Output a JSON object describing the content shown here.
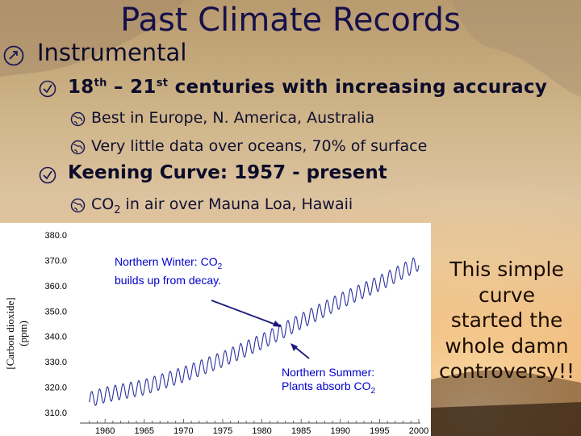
{
  "title": "Past Climate Records",
  "bullets": {
    "instrumental": "Instrumental",
    "centuries_a": "18",
    "centuries_a_sup": "th",
    "centuries_dash": " – 21",
    "centuries_b_sup": "st",
    "centuries_rest": " centuries with increasing accuracy",
    "sub_europe": "Best in Europe, N. America, Australia",
    "sub_oceans": "Very little data over oceans, 70% of surface",
    "keeling": "Keening Curve: 1957 - present",
    "sub_co2_a": "CO",
    "sub_co2_sub": "2",
    "sub_co2_b": " in air over Mauna Loa, Hawaii"
  },
  "callout": [
    "This simple",
    "curve",
    "started the",
    "whole damn",
    "controversy!!"
  ],
  "annotations": {
    "winter_a": "Northern Winter: CO",
    "winter_sub": "2",
    "winter_b": "builds up from decay.",
    "summer_a": "Northern Summer:",
    "summer_b": "Plants absorb CO",
    "summer_sub": "2"
  },
  "colors": {
    "curve": "#2b2f9e",
    "annotation": "#0000cc",
    "arrow": "#1a1a7a",
    "bullet_icon": "#1a1a55"
  },
  "icons": {
    "level1": "pointing-hand-icon",
    "level2": "checkbox-icon",
    "level3": "globe-icon"
  },
  "chart_data": {
    "type": "line",
    "title": "",
    "xlabel": "",
    "ylabel": "[Carbon dioxide] (ppm)",
    "ylabel_line1": "[Carbon dioxide]",
    "ylabel_line2": "(ppm)",
    "xlim": [
      1957,
      2000
    ],
    "ylim": [
      310,
      380
    ],
    "grid": false,
    "legend": "none",
    "x_ticks": [
      1960,
      1965,
      1970,
      1975,
      1980,
      1985,
      1990,
      1995,
      2000
    ],
    "y_ticks": [
      "310.0",
      "320.0",
      "330.0",
      "340.0",
      "350.0",
      "360.0",
      "370.0",
      "380.0"
    ],
    "trend_x": [
      1958,
      1960,
      1965,
      1970,
      1975,
      1980,
      1985,
      1990,
      1995,
      2000
    ],
    "trend_y": [
      315,
      317,
      320,
      325,
      331,
      338,
      346,
      354,
      361,
      369
    ],
    "seasonal_amplitude_ppm": 3,
    "series": [
      {
        "x_start": 1958,
        "x_end": 2000
      }
    ]
  }
}
